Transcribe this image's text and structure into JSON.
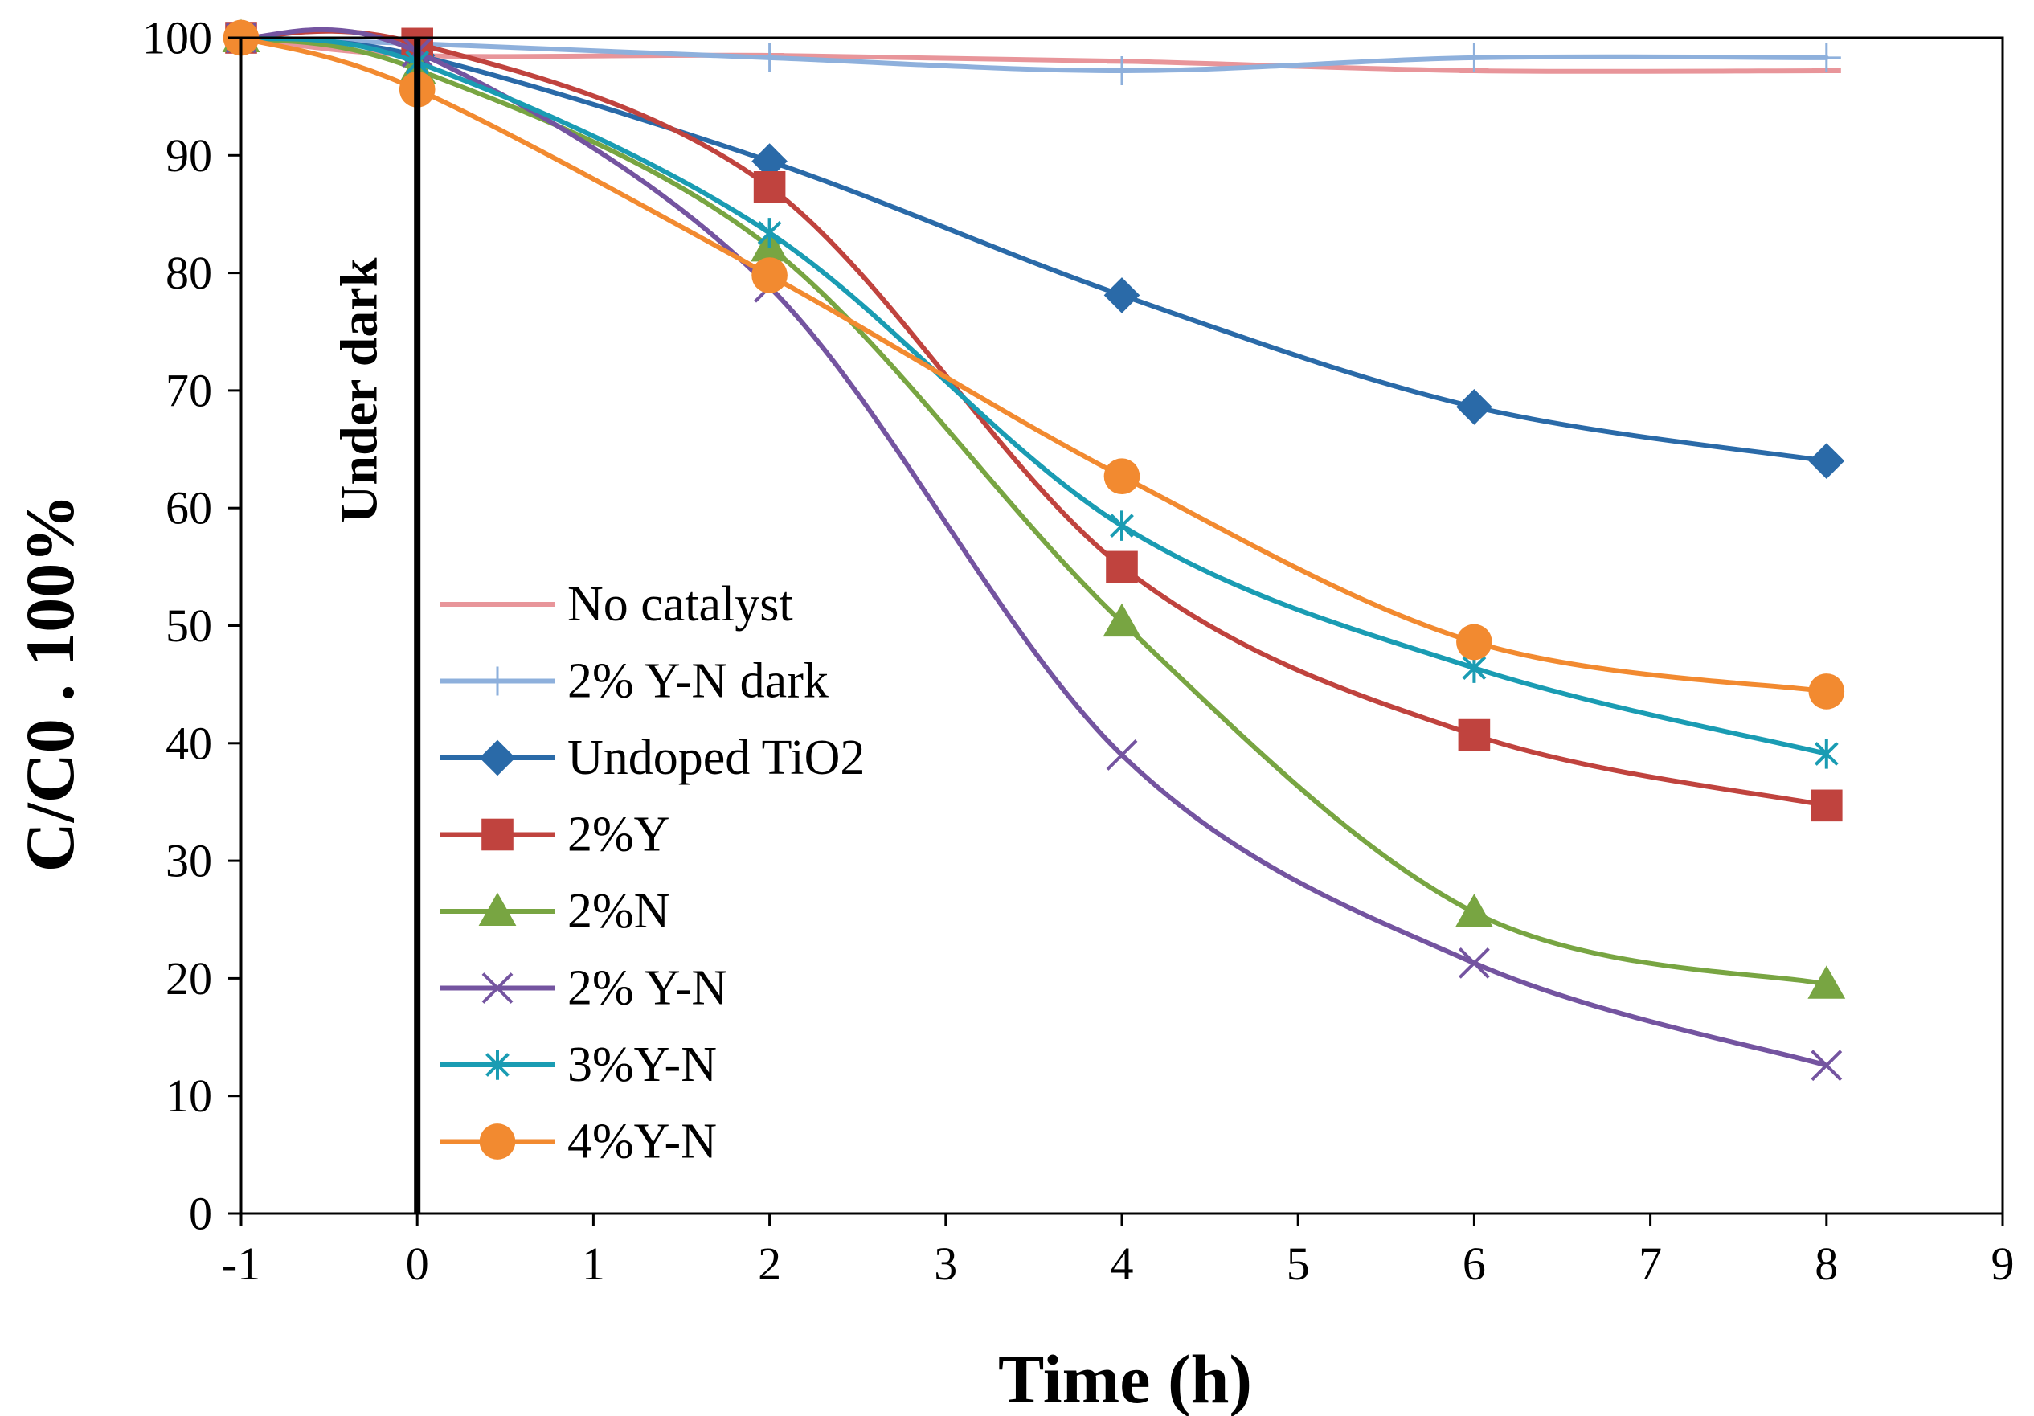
{
  "chart_data": {
    "type": "line",
    "title": "",
    "xlabel": "Time (h)",
    "ylabel": "C/C0 . 100%",
    "xlim": [
      -1,
      9
    ],
    "ylim": [
      0,
      100
    ],
    "xticks": [
      "-1",
      "0",
      "1",
      "2",
      "3",
      "4",
      "5",
      "6",
      "7",
      "8",
      "9"
    ],
    "yticks": [
      "0",
      "10",
      "20",
      "30",
      "40",
      "50",
      "60",
      "70",
      "80",
      "90",
      "100"
    ],
    "grid": false,
    "legend_position": "lower-left",
    "smoothed": true,
    "annotations": [
      {
        "text": "Under dark",
        "x": 0,
        "orientation": "vertical"
      }
    ],
    "x": [
      -1,
      0,
      2,
      4,
      6,
      8
    ],
    "series": [
      {
        "name": "No catalyst",
        "color": "#e8959a",
        "marker": "dash",
        "values": [
          100,
          98.5,
          98.5,
          98,
          97.2,
          97.2
        ]
      },
      {
        "name": "2% Y-N dark",
        "color": "#8eb0dc",
        "marker": "plus",
        "values": [
          100,
          99.5,
          98.3,
          97.2,
          98.3,
          98.3
        ]
      },
      {
        "name": "Undoped TiO2",
        "color": "#2a6aa8",
        "marker": "diamond",
        "values": [
          100,
          98.5,
          89.5,
          78.1,
          68.6,
          64
        ]
      },
      {
        "name": "2%Y",
        "color": "#c0433e",
        "marker": "square",
        "values": [
          100,
          99.5,
          87.3,
          55,
          40.7,
          34.7
        ]
      },
      {
        "name": "2%N",
        "color": "#78a542",
        "marker": "triangle",
        "values": [
          100,
          97.3,
          82.2,
          50.3,
          25.6,
          19.5
        ]
      },
      {
        "name": "2% Y-N",
        "color": "#7454a0",
        "marker": "x",
        "values": [
          100,
          98.8,
          78.8,
          39,
          21.3,
          12.6
        ]
      },
      {
        "name": "3%Y-N",
        "color": "#1a9cb3",
        "marker": "asterisk",
        "values": [
          100,
          97.9,
          83.4,
          58.5,
          46.4,
          39.1
        ]
      },
      {
        "name": "4%Y-N",
        "color": "#f28a30",
        "marker": "circle",
        "values": [
          100,
          95.6,
          79.8,
          62.7,
          48.6,
          44.4
        ]
      }
    ]
  }
}
